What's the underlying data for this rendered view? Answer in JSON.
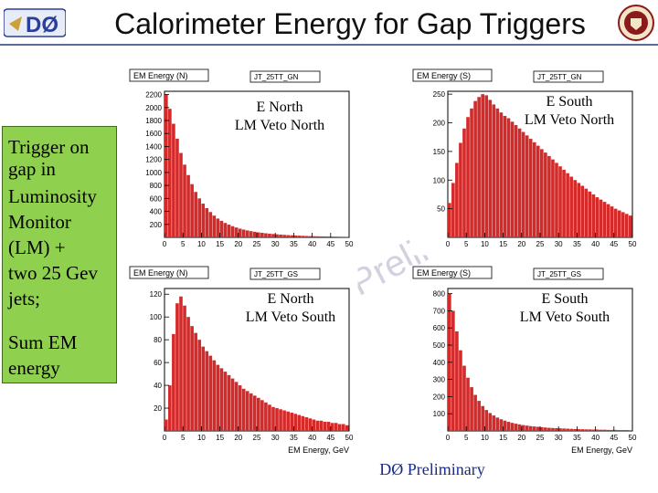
{
  "header": {
    "title": "Calorimeter Energy for Gap Triggers",
    "logo_text": "DØ",
    "colors": {
      "logo_blue": "#2a3f9a",
      "title": "#111111",
      "seal_red": "#8b1a1a"
    }
  },
  "sidebar": {
    "lines": [
      "Trigger on",
      "gap in",
      "Luminosity",
      "Monitor",
      "(LM) +",
      "two 25 Gev",
      "jets;",
      "",
      "Sum EM",
      "energy"
    ],
    "bg_color": "#8fd14f"
  },
  "watermark": {
    "text": "DØ Preliminary",
    "color": "#c9c9d9"
  },
  "footer": {
    "text": "DØ Preliminary",
    "color": "#1a2a8a"
  },
  "chart_data": [
    {
      "type": "bar",
      "panel_title": "EM Energy (N)",
      "trigger_tag": "JT_25TT_GN",
      "annotation": [
        "E North",
        "LM Veto North"
      ],
      "xlim": [
        0,
        50
      ],
      "ylim": [
        0,
        2250
      ],
      "xticks": [
        0,
        5,
        10,
        15,
        20,
        25,
        30,
        35,
        40,
        45,
        50
      ],
      "yticks": [
        200,
        400,
        600,
        800,
        1000,
        1200,
        1400,
        1600,
        1800,
        2000,
        2200
      ],
      "xlabel": "",
      "values": [
        2200,
        1980,
        1750,
        1520,
        1300,
        1120,
        960,
        820,
        700,
        600,
        520,
        450,
        390,
        335,
        290,
        255,
        222,
        196,
        172,
        152,
        134,
        120,
        107,
        96,
        86,
        77,
        70,
        63,
        57,
        52,
        47,
        43,
        39,
        35,
        32,
        29,
        27,
        24,
        22,
        20,
        18,
        17,
        15,
        14,
        13,
        12,
        11,
        10,
        9,
        8
      ]
    },
    {
      "type": "bar",
      "panel_title": "EM Energy (S)",
      "trigger_tag": "JT_25TT_GN",
      "annotation": [
        "E South",
        "LM Veto North"
      ],
      "xlim": [
        0,
        50
      ],
      "ylim": [
        0,
        255
      ],
      "xticks": [
        0,
        5,
        10,
        15,
        20,
        25,
        30,
        35,
        40,
        45,
        50
      ],
      "yticks": [
        50,
        100,
        150,
        200,
        250
      ],
      "xlabel": "",
      "values": [
        60,
        95,
        130,
        165,
        190,
        210,
        225,
        238,
        245,
        250,
        248,
        240,
        232,
        225,
        218,
        212,
        208,
        202,
        196,
        190,
        184,
        178,
        172,
        166,
        160,
        154,
        148,
        142,
        136,
        130,
        124,
        118,
        112,
        106,
        100,
        95,
        90,
        85,
        80,
        75,
        70,
        66,
        62,
        58,
        54,
        50,
        47,
        44,
        41,
        38
      ]
    },
    {
      "type": "bar",
      "panel_title": "EM Energy (N)",
      "trigger_tag": "JT_25TT_GS",
      "annotation": [
        "E North",
        "LM Veto South"
      ],
      "xlim": [
        0,
        50
      ],
      "ylim": [
        0,
        125
      ],
      "xticks": [
        0,
        5,
        10,
        15,
        20,
        25,
        30,
        35,
        40,
        45,
        50
      ],
      "yticks": [
        20,
        40,
        60,
        80,
        100,
        120
      ],
      "xlabel": "EM Energy, GeV",
      "values": [
        10,
        40,
        85,
        112,
        118,
        110,
        100,
        92,
        86,
        80,
        74,
        70,
        66,
        62,
        58,
        55,
        52,
        49,
        46,
        43,
        40,
        37,
        35,
        33,
        31,
        29,
        27,
        25,
        23,
        21,
        20,
        19,
        18,
        17,
        16,
        15,
        14,
        13,
        12,
        11,
        10,
        9,
        9,
        8,
        8,
        7,
        7,
        6,
        6,
        5
      ]
    },
    {
      "type": "bar",
      "panel_title": "EM Energy (S)",
      "trigger_tag": "JT_25TT_GS",
      "annotation": [
        "E South",
        "LM Veto South"
      ],
      "xlim": [
        0,
        50
      ],
      "ylim": [
        0,
        830
      ],
      "xticks": [
        0,
        5,
        10,
        15,
        20,
        25,
        30,
        35,
        40,
        45,
        50
      ],
      "yticks": [
        100,
        200,
        300,
        400,
        500,
        600,
        700,
        800
      ],
      "xlabel": "EM Energy, GeV",
      "values": [
        800,
        700,
        580,
        470,
        380,
        310,
        255,
        210,
        175,
        145,
        122,
        104,
        90,
        78,
        68,
        60,
        53,
        47,
        42,
        38,
        34,
        31,
        28,
        26,
        24,
        22,
        20,
        18,
        17,
        16,
        15,
        14,
        13,
        12,
        11,
        10,
        10,
        9,
        9,
        8,
        8,
        7,
        7,
        6,
        6,
        6,
        5,
        5,
        5,
        4
      ]
    }
  ]
}
